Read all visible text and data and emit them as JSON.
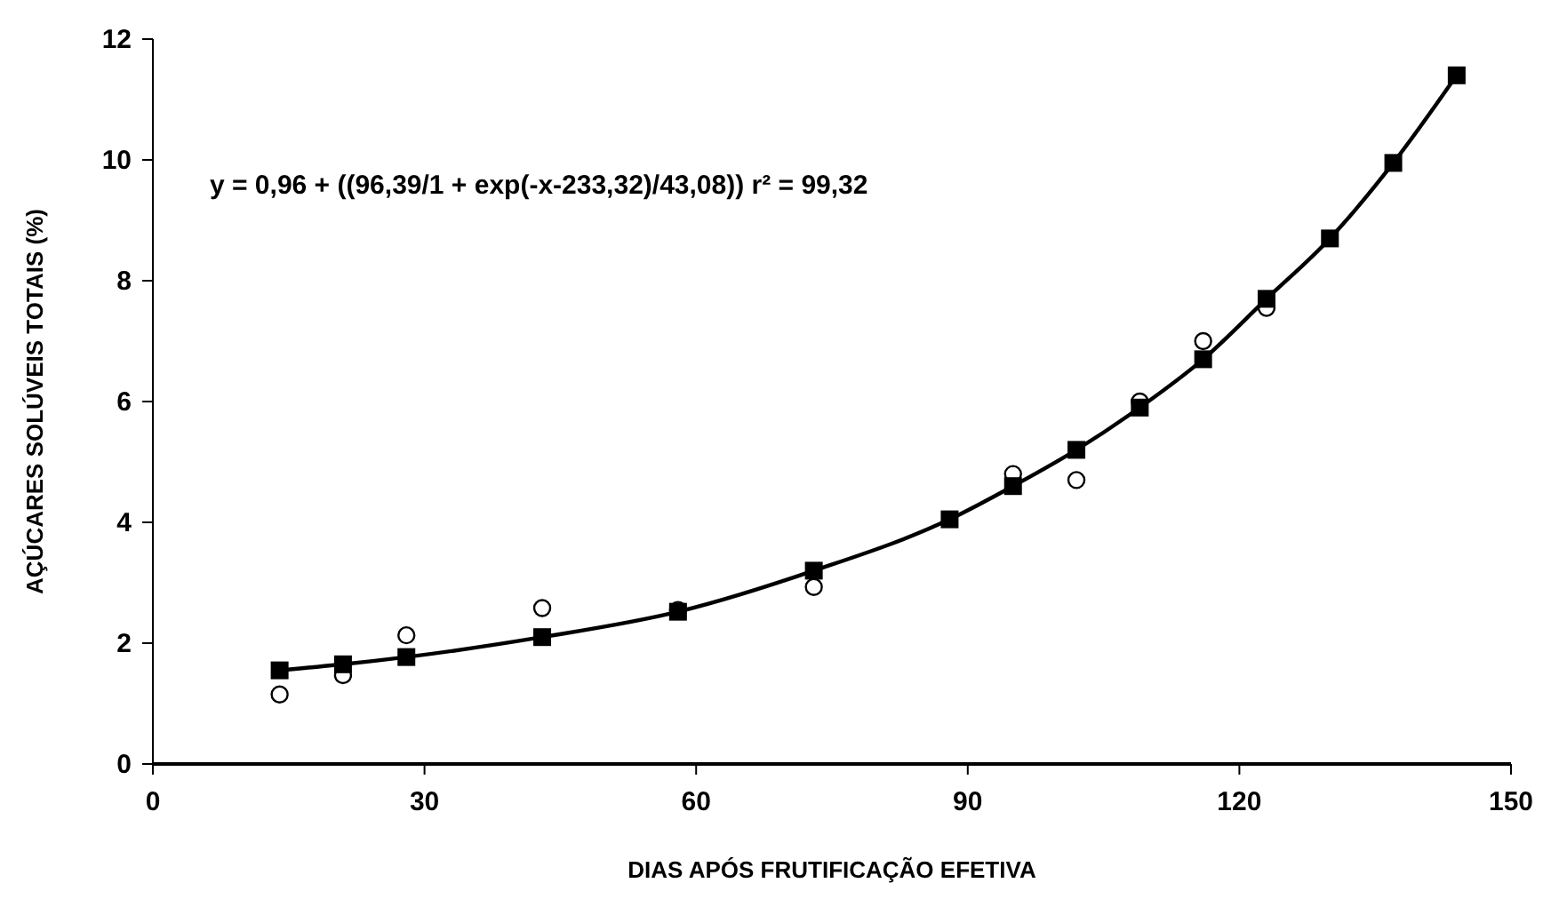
{
  "chart_data": {
    "type": "scatter",
    "xlabel": "DIAS APÓS FRUTIFICAÇÃO EFETIVA",
    "ylabel": "AÇÚCARES SOLÚVEIS TOTAIS (%)",
    "annotations": [
      "y = 0,96 + ((96,39/1 + exp(-x-233,32)/43,08)) r² = 99,32"
    ],
    "x": [
      14,
      21,
      28,
      43,
      58,
      73,
      88,
      95,
      102,
      109,
      116,
      123,
      130,
      137,
      144
    ],
    "series": [
      {
        "marker": "circle",
        "color": "#000000",
        "values": [
          1.15,
          1.47,
          2.13,
          2.58,
          2.55,
          2.93,
          null,
          4.8,
          4.7,
          6.0,
          7.0,
          7.55,
          null,
          null,
          null
        ]
      },
      {
        "type": "line",
        "marker": "square",
        "line_style": "solid",
        "color": "#000000",
        "values": [
          1.55,
          1.65,
          1.77,
          2.1,
          2.52,
          3.2,
          4.05,
          4.6,
          5.2,
          5.9,
          6.7,
          7.7,
          8.7,
          9.95,
          11.4
        ]
      }
    ],
    "xlim": [
      0,
      150
    ],
    "xticks": [
      0,
      30,
      60,
      90,
      120,
      150
    ],
    "ylim": [
      0,
      12
    ],
    "yticks": [
      0,
      2,
      4,
      6,
      8,
      10,
      12
    ],
    "grid": false
  }
}
